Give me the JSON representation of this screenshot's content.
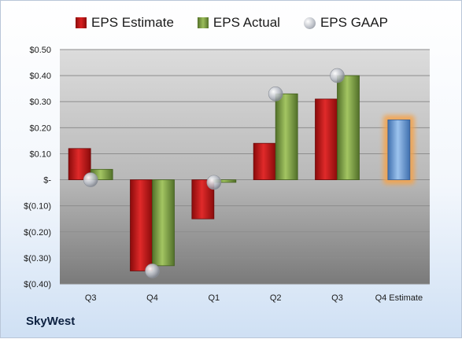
{
  "legend": {
    "estimate": "EPS Estimate",
    "actual": "EPS Actual",
    "gaap": "EPS GAAP"
  },
  "company": "SkyWest",
  "colors": {
    "estimate": "#c41e1e",
    "actual": "#7fa244",
    "gaap": "#b9bdc6",
    "forecast": "#6f9fd8",
    "forecast_glow": "#f5a34a"
  },
  "chart_data": {
    "type": "bar",
    "categories": [
      "Q3",
      "Q4",
      "Q1",
      "Q2",
      "Q3",
      "Q4 Estimate"
    ],
    "series": [
      {
        "name": "EPS Estimate",
        "values": [
          0.12,
          -0.35,
          -0.15,
          0.14,
          0.31,
          0.23
        ]
      },
      {
        "name": "EPS Actual",
        "values": [
          0.04,
          -0.33,
          -0.01,
          0.33,
          0.4,
          null
        ]
      },
      {
        "name": "EPS GAAP",
        "values": [
          0.0,
          -0.35,
          -0.01,
          0.33,
          0.4,
          null
        ]
      }
    ],
    "ylim": [
      -0.4,
      0.5
    ],
    "yticks": [
      0.5,
      0.4,
      0.3,
      0.2,
      0.1,
      0.0,
      -0.1,
      -0.2,
      -0.3,
      -0.4
    ],
    "ytick_labels": [
      "$0.50",
      "$0.40",
      "$0.30",
      "$0.20",
      "$0.10",
      "$-",
      "$(0.10)",
      "$(0.20)",
      "$(0.30)",
      "$(0.40)"
    ],
    "grid": true,
    "legend_position": "top"
  }
}
